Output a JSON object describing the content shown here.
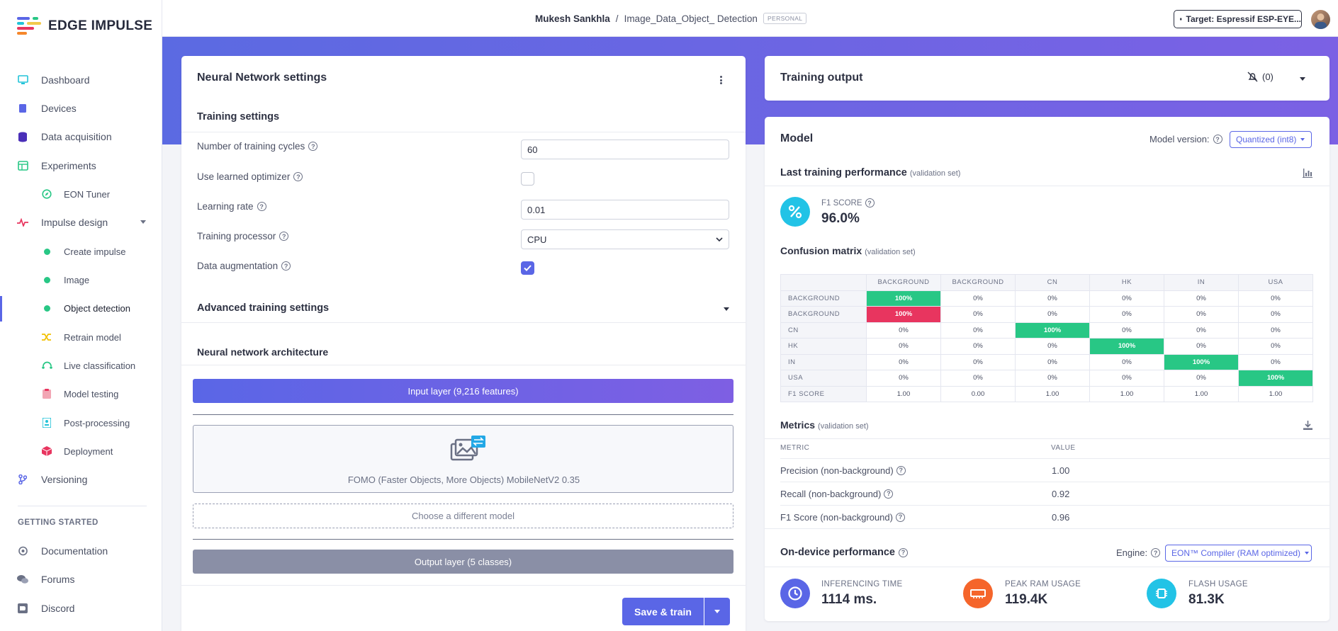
{
  "app": {
    "name": "EDGE IMPULSE"
  },
  "sidebar": {
    "items": [
      {
        "label": "Dashboard",
        "icon": "monitor-icon"
      },
      {
        "label": "Devices",
        "icon": "chip-icon"
      },
      {
        "label": "Data acquisition",
        "icon": "database-icon"
      },
      {
        "label": "Experiments",
        "icon": "table-icon"
      },
      {
        "label": "EON Tuner",
        "icon": "compass-icon"
      },
      {
        "label": "Impulse design",
        "icon": "pulse-icon"
      },
      {
        "label": "Create impulse",
        "icon": "dot-icon"
      },
      {
        "label": "Image",
        "icon": "dot-icon"
      },
      {
        "label": "Object detection",
        "icon": "dot-icon"
      },
      {
        "label": "Retrain model",
        "icon": "shuffle-icon"
      },
      {
        "label": "Live classification",
        "icon": "live-icon"
      },
      {
        "label": "Model testing",
        "icon": "clipboard-icon"
      },
      {
        "label": "Post-processing",
        "icon": "badge-icon"
      },
      {
        "label": "Deployment",
        "icon": "cube-icon"
      },
      {
        "label": "Versioning",
        "icon": "branch-icon"
      }
    ],
    "section": "GETTING STARTED",
    "bottom": [
      {
        "label": "Documentation",
        "icon": "book-icon"
      },
      {
        "label": "Forums",
        "icon": "chat-icon"
      },
      {
        "label": "Discord",
        "icon": "discord-icon"
      }
    ]
  },
  "header": {
    "user": "Mukesh Sankhla",
    "separator": "/",
    "project": "Image_Data_Object_ Detection",
    "badge": "PERSONAL",
    "target": "Target: Espressif ESP-EYE..."
  },
  "nn": {
    "title": "Neural Network settings",
    "training_settings": "Training settings",
    "cycles_label": "Number of training cycles",
    "cycles_value": "60",
    "optimizer_label": "Use learned optimizer",
    "lr_label": "Learning rate",
    "lr_value": "0.01",
    "processor_label": "Training processor",
    "processor_value": "CPU",
    "augmentation_label": "Data augmentation",
    "advanced": "Advanced training settings",
    "architecture": "Neural network architecture",
    "input_layer": "Input layer (9,216 features)",
    "model_name": "FOMO (Faster Objects, More Objects) MobileNetV2 0.35",
    "choose_model": "Choose a different model",
    "output_layer": "Output layer (5 classes)",
    "save_train": "Save & train"
  },
  "training_output": {
    "title": "Training output",
    "notifications": "(0)"
  },
  "model": {
    "title": "Model",
    "version_label": "Model version:",
    "version_value": "Quantized (int8)",
    "last_perf": "Last training performance",
    "validation_set": "(validation set)",
    "f1_label": "F1 SCORE",
    "f1_value": "96.0%",
    "confusion_title": "Confusion matrix",
    "confusion": {
      "columns": [
        "BACKGROUND",
        "BACKGROUND",
        "CN",
        "HK",
        "IN",
        "USA"
      ],
      "rows": [
        {
          "label": "BACKGROUND",
          "cells": [
            "100%",
            "0%",
            "0%",
            "0%",
            "0%",
            "0%"
          ]
        },
        {
          "label": "BACKGROUND",
          "cells": [
            "100%",
            "0%",
            "0%",
            "0%",
            "0%",
            "0%"
          ]
        },
        {
          "label": "CN",
          "cells": [
            "0%",
            "0%",
            "100%",
            "0%",
            "0%",
            "0%"
          ]
        },
        {
          "label": "HK",
          "cells": [
            "0%",
            "0%",
            "0%",
            "100%",
            "0%",
            "0%"
          ]
        },
        {
          "label": "IN",
          "cells": [
            "0%",
            "0%",
            "0%",
            "0%",
            "100%",
            "0%"
          ]
        },
        {
          "label": "USA",
          "cells": [
            "0%",
            "0%",
            "0%",
            "0%",
            "0%",
            "100%"
          ]
        }
      ],
      "f1_row": {
        "label": "F1 SCORE",
        "cells": [
          "1.00",
          "0.00",
          "1.00",
          "1.00",
          "1.00",
          "1.00"
        ]
      }
    },
    "metrics_title": "Metrics",
    "metrics_col_metric": "METRIC",
    "metrics_col_value": "VALUE",
    "metrics": [
      {
        "name": "Precision (non-background)",
        "value": "1.00"
      },
      {
        "name": "Recall (non-background)",
        "value": "0.92"
      },
      {
        "name": "F1 Score (non-background)",
        "value": "0.96"
      }
    ],
    "ondevice_title": "On-device performance",
    "engine_label": "Engine:",
    "engine_value": "EON™ Compiler (RAM optimized)",
    "perf": [
      {
        "label": "INFERENCING TIME",
        "value": "1114 ms."
      },
      {
        "label": "PEAK RAM USAGE",
        "value": "119.4K"
      },
      {
        "label": "FLASH USAGE",
        "value": "81.3K"
      }
    ]
  },
  "colors": {
    "accent": "#5a66e6",
    "green": "#28c785",
    "red": "#e8355f",
    "banner": "#6a65e3"
  }
}
